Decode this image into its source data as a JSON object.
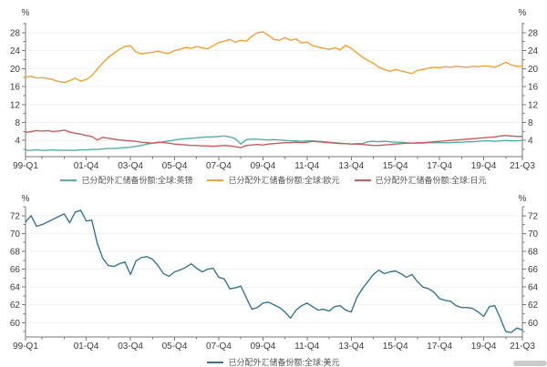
{
  "page": {
    "background": "#ffffff"
  },
  "categories": [
    "99-Q1",
    "99-Q2",
    "99-Q3",
    "99-Q4",
    "00-Q1",
    "00-Q2",
    "00-Q3",
    "00-Q4",
    "01-Q1",
    "01-Q2",
    "01-Q3",
    "01-Q4",
    "02-Q1",
    "02-Q2",
    "02-Q3",
    "02-Q4",
    "03-Q1",
    "03-Q2",
    "03-Q3",
    "03-Q4",
    "04-Q1",
    "04-Q2",
    "04-Q3",
    "04-Q4",
    "05-Q1",
    "05-Q2",
    "05-Q3",
    "05-Q4",
    "06-Q1",
    "06-Q2",
    "06-Q3",
    "06-Q4",
    "07-Q1",
    "07-Q2",
    "07-Q3",
    "07-Q4",
    "08-Q1",
    "08-Q2",
    "08-Q3",
    "08-Q4",
    "09-Q1",
    "09-Q2",
    "09-Q3",
    "09-Q4",
    "10-Q1",
    "10-Q2",
    "10-Q3",
    "10-Q4",
    "11-Q1",
    "11-Q2",
    "11-Q3",
    "11-Q4",
    "12-Q1",
    "12-Q2",
    "12-Q3",
    "12-Q4",
    "13-Q1",
    "13-Q2",
    "13-Q3",
    "13-Q4",
    "14-Q1",
    "14-Q2",
    "14-Q3",
    "14-Q4",
    "15-Q1",
    "15-Q2",
    "15-Q3",
    "15-Q4",
    "16-Q1",
    "16-Q2",
    "16-Q3",
    "16-Q4",
    "17-Q1",
    "17-Q2",
    "17-Q3",
    "17-Q4",
    "18-Q1",
    "18-Q2",
    "18-Q3",
    "18-Q4",
    "19-Q1",
    "19-Q2",
    "19-Q3",
    "19-Q4",
    "20-Q1",
    "20-Q2",
    "20-Q3",
    "20-Q4",
    "21-Q1",
    "21-Q2",
    "21-Q3"
  ],
  "chart_data": [
    {
      "type": "line",
      "title": "",
      "unit": "%",
      "ylim": [
        0.4,
        30.2
      ],
      "yticks": [
        4,
        8,
        12,
        16,
        20,
        24,
        28
      ],
      "yminor": [
        2,
        6,
        10,
        14,
        18,
        22,
        26,
        30
      ],
      "x_major_idx": [
        0,
        11,
        19,
        27,
        35,
        43,
        51,
        59,
        67,
        75,
        83,
        90
      ],
      "x_minor_idx": [
        3,
        7,
        15,
        23,
        31,
        39,
        47,
        55,
        63,
        71,
        79,
        87
      ],
      "grid": "horizontal",
      "legend_position": "bottom",
      "axis_color": "#777777",
      "grid_color": "#f1f1f1",
      "series": [
        {
          "id": "gbp",
          "name": "已分配外汇储备份额:全球:英镑",
          "color": "#56afa4",
          "values": [
            1.8,
            1.8,
            1.9,
            1.8,
            1.8,
            1.9,
            1.8,
            1.8,
            1.8,
            1.8,
            1.9,
            1.9,
            2.0,
            2.0,
            2.1,
            2.2,
            2.2,
            2.3,
            2.4,
            2.5,
            2.7,
            2.9,
            3.2,
            3.4,
            3.5,
            3.7,
            3.9,
            4.1,
            4.3,
            4.4,
            4.5,
            4.6,
            4.7,
            4.8,
            4.8,
            4.9,
            5.0,
            4.8,
            4.4,
            3.2,
            4.2,
            4.3,
            4.3,
            4.2,
            4.1,
            4.2,
            4.1,
            4.0,
            3.9,
            3.9,
            3.8,
            3.9,
            3.9,
            3.8,
            3.7,
            3.6,
            3.5,
            3.4,
            3.3,
            3.2,
            3.3,
            3.3,
            3.7,
            3.8,
            3.7,
            3.8,
            3.7,
            3.6,
            3.6,
            3.5,
            3.4,
            3.4,
            3.4,
            3.5,
            3.5,
            3.5,
            3.5,
            3.5,
            3.6,
            3.6,
            3.7,
            3.7,
            3.8,
            3.9,
            3.9,
            3.8,
            3.9,
            4.0,
            3.9,
            3.9,
            4.0
          ]
        },
        {
          "id": "eur",
          "name": "已分配外汇储备份额:全球:欧元",
          "color": "#f0a139",
          "values": [
            18.1,
            18.3,
            17.9,
            18.0,
            17.8,
            17.5,
            17.1,
            16.9,
            17.3,
            17.9,
            17.2,
            17.6,
            18.4,
            19.9,
            21.3,
            22.5,
            23.4,
            24.3,
            24.9,
            25.1,
            23.7,
            23.3,
            23.5,
            23.6,
            23.9,
            23.5,
            23.4,
            24.0,
            24.3,
            24.7,
            24.5,
            24.9,
            24.6,
            24.4,
            25.1,
            25.8,
            26.1,
            26.5,
            25.9,
            26.3,
            26.1,
            27.2,
            28.0,
            28.2,
            27.4,
            26.5,
            26.3,
            26.9,
            26.3,
            26.6,
            25.7,
            25.9,
            25.1,
            24.8,
            24.5,
            24.3,
            24.6,
            24.2,
            25.2,
            24.5,
            23.5,
            22.6,
            21.8,
            21.2,
            20.3,
            19.8,
            19.4,
            19.8,
            19.5,
            19.2,
            18.9,
            19.6,
            19.8,
            20.1,
            20.3,
            20.2,
            20.4,
            20.3,
            20.5,
            20.4,
            20.3,
            20.5,
            20.4,
            20.6,
            20.5,
            20.3,
            20.8,
            21.4,
            20.8,
            20.5,
            20.5
          ]
        },
        {
          "id": "jpy",
          "name": "已分配外汇储备份额:全球:日元",
          "color": "#c95c5c",
          "values": [
            5.8,
            6.0,
            6.2,
            6.1,
            6.2,
            6.0,
            6.1,
            6.3,
            5.9,
            5.6,
            5.4,
            5.1,
            4.9,
            4.1,
            4.7,
            4.5,
            4.3,
            4.1,
            4.0,
            3.9,
            3.8,
            3.6,
            3.5,
            3.4,
            3.6,
            3.5,
            3.4,
            3.2,
            3.1,
            3.0,
            2.9,
            2.9,
            2.8,
            2.8,
            2.7,
            2.8,
            2.9,
            2.8,
            2.6,
            2.4,
            2.9,
            3.0,
            3.1,
            3.0,
            3.2,
            3.3,
            3.4,
            3.5,
            3.5,
            3.6,
            3.5,
            3.6,
            3.8,
            3.7,
            3.6,
            3.5,
            3.4,
            3.3,
            3.3,
            3.2,
            3.2,
            3.1,
            3.0,
            2.9,
            2.9,
            3.0,
            3.1,
            3.2,
            3.3,
            3.4,
            3.4,
            3.5,
            3.5,
            3.6,
            3.7,
            3.8,
            3.9,
            4.0,
            4.1,
            4.2,
            4.3,
            4.4,
            4.5,
            4.6,
            4.7,
            4.8,
            5.0,
            5.1,
            5.0,
            4.9,
            4.9
          ]
        }
      ]
    },
    {
      "type": "line",
      "title": "",
      "unit": "%",
      "ylim": [
        58.4,
        73.0
      ],
      "yticks": [
        60,
        62,
        64,
        66,
        68,
        70,
        72
      ],
      "yminor": [
        59,
        61,
        63,
        65,
        67,
        69,
        71,
        73
      ],
      "x_major_idx": [
        0,
        11,
        19,
        27,
        35,
        43,
        51,
        59,
        67,
        75,
        83,
        90
      ],
      "x_minor_idx": [
        3,
        7,
        15,
        23,
        31,
        39,
        47,
        55,
        63,
        71,
        79,
        87
      ],
      "grid": "horizontal",
      "legend_position": "bottom",
      "axis_color": "#777777",
      "grid_color": "#f1f1f1",
      "series": [
        {
          "id": "usd",
          "name": "已分配外汇储备份额:全球:美元",
          "color": "#3a7590",
          "values": [
            71.3,
            72.0,
            70.8,
            71.0,
            71.3,
            71.6,
            71.9,
            72.2,
            71.2,
            72.4,
            72.6,
            71.4,
            71.5,
            68.9,
            67.2,
            66.4,
            66.3,
            66.6,
            66.8,
            65.4,
            66.9,
            67.3,
            67.4,
            67.1,
            66.4,
            65.5,
            65.2,
            65.7,
            65.9,
            66.2,
            66.6,
            66.1,
            65.7,
            66.0,
            66.1,
            65.1,
            64.9,
            63.8,
            63.9,
            64.1,
            62.8,
            61.5,
            61.7,
            62.2,
            62.3,
            62.0,
            61.7,
            61.2,
            60.5,
            61.4,
            61.9,
            62.2,
            61.8,
            61.4,
            61.5,
            61.3,
            61.8,
            61.9,
            61.4,
            61.2,
            62.8,
            63.8,
            64.6,
            65.4,
            65.9,
            65.5,
            65.7,
            65.8,
            65.5,
            65.1,
            65.4,
            64.6,
            64.0,
            63.8,
            63.4,
            62.7,
            62.5,
            62.4,
            61.9,
            61.7,
            61.7,
            61.6,
            61.2,
            60.7,
            61.8,
            61.9,
            60.5,
            59.0,
            58.9,
            59.4,
            59.2
          ]
        }
      ]
    }
  ],
  "scrollbar": {
    "color": "#cbcbcb"
  }
}
